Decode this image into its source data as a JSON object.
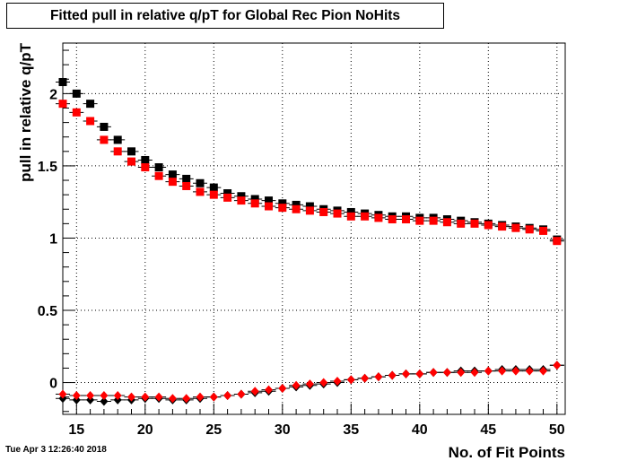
{
  "title": "Fitted pull in relative q/pT for Global Rec Pion NoHits",
  "timestamp": "Tue Apr  3 12:26:40 2018",
  "chart_data": {
    "type": "scatter",
    "title": "Fitted pull in relative q/pT for Global Rec Pion NoHits",
    "xlabel": "No. of Fit Points",
    "ylabel": "pull in relative q/pT",
    "xlim": [
      14,
      50.6
    ],
    "ylim": [
      -0.22,
      2.35
    ],
    "x_ticks": [
      15,
      20,
      25,
      30,
      35,
      40,
      45,
      50
    ],
    "y_ticks": [
      0,
      0.5,
      1,
      1.5,
      2
    ],
    "x_tick_labels": [
      "15",
      "20",
      "25",
      "30",
      "35",
      "40",
      "45",
      "50"
    ],
    "y_tick_labels": [
      "0",
      "0.5",
      "1",
      "1.5",
      "2"
    ],
    "grid": true,
    "series": [
      {
        "marker": "square",
        "color": "#000000",
        "x": [
          14,
          15,
          16,
          17,
          18,
          19,
          20,
          21,
          22,
          23,
          24,
          25,
          26,
          27,
          28,
          29,
          30,
          31,
          32,
          33,
          34,
          35,
          36,
          37,
          38,
          39,
          40,
          41,
          42,
          43,
          44,
          45,
          46,
          47,
          48,
          49,
          50
        ],
        "y": [
          2.08,
          2.0,
          1.93,
          1.77,
          1.68,
          1.6,
          1.54,
          1.49,
          1.44,
          1.41,
          1.38,
          1.35,
          1.31,
          1.29,
          1.27,
          1.26,
          1.24,
          1.23,
          1.22,
          1.2,
          1.19,
          1.18,
          1.17,
          1.16,
          1.15,
          1.15,
          1.14,
          1.14,
          1.13,
          1.12,
          1.11,
          1.1,
          1.09,
          1.08,
          1.07,
          1.06,
          0.99
        ]
      },
      {
        "marker": "square",
        "color": "#ff0000",
        "x": [
          14,
          15,
          16,
          17,
          18,
          19,
          20,
          21,
          22,
          23,
          24,
          25,
          26,
          27,
          28,
          29,
          30,
          31,
          32,
          33,
          34,
          35,
          36,
          37,
          38,
          39,
          40,
          41,
          42,
          43,
          44,
          45,
          46,
          47,
          48,
          49,
          50
        ],
        "y": [
          1.93,
          1.87,
          1.81,
          1.68,
          1.6,
          1.53,
          1.49,
          1.43,
          1.39,
          1.36,
          1.32,
          1.3,
          1.28,
          1.26,
          1.24,
          1.22,
          1.21,
          1.2,
          1.19,
          1.18,
          1.17,
          1.15,
          1.15,
          1.14,
          1.13,
          1.13,
          1.12,
          1.12,
          1.11,
          1.1,
          1.1,
          1.09,
          1.08,
          1.07,
          1.06,
          1.05,
          0.98
        ]
      },
      {
        "marker": "diamond",
        "color": "#000000",
        "x": [
          14,
          15,
          16,
          17,
          18,
          19,
          20,
          21,
          22,
          23,
          24,
          25,
          26,
          27,
          28,
          29,
          30,
          31,
          32,
          33,
          34,
          35,
          36,
          37,
          38,
          39,
          40,
          41,
          42,
          43,
          44,
          45,
          46,
          47,
          48,
          49,
          50
        ],
        "y": [
          -0.11,
          -0.12,
          -0.12,
          -0.13,
          -0.12,
          -0.12,
          -0.11,
          -0.11,
          -0.12,
          -0.12,
          -0.11,
          -0.1,
          -0.09,
          -0.08,
          -0.07,
          -0.06,
          -0.04,
          -0.03,
          -0.02,
          -0.01,
          0.0,
          0.02,
          0.03,
          0.04,
          0.05,
          0.06,
          0.06,
          0.07,
          0.07,
          0.08,
          0.08,
          0.08,
          0.09,
          0.09,
          0.09,
          0.09,
          0.12
        ]
      },
      {
        "marker": "diamond",
        "color": "#ff0000",
        "x": [
          14,
          15,
          16,
          17,
          18,
          19,
          20,
          21,
          22,
          23,
          24,
          25,
          26,
          27,
          28,
          29,
          30,
          31,
          32,
          33,
          34,
          35,
          36,
          37,
          38,
          39,
          40,
          41,
          42,
          43,
          44,
          45,
          46,
          47,
          48,
          49,
          50
        ],
        "y": [
          -0.08,
          -0.09,
          -0.09,
          -0.09,
          -0.09,
          -0.1,
          -0.1,
          -0.1,
          -0.11,
          -0.11,
          -0.1,
          -0.1,
          -0.09,
          -0.08,
          -0.06,
          -0.05,
          -0.04,
          -0.02,
          -0.01,
          0.0,
          0.01,
          0.02,
          0.03,
          0.04,
          0.05,
          0.06,
          0.06,
          0.07,
          0.07,
          0.07,
          0.07,
          0.08,
          0.08,
          0.08,
          0.08,
          0.08,
          0.12
        ]
      }
    ]
  }
}
